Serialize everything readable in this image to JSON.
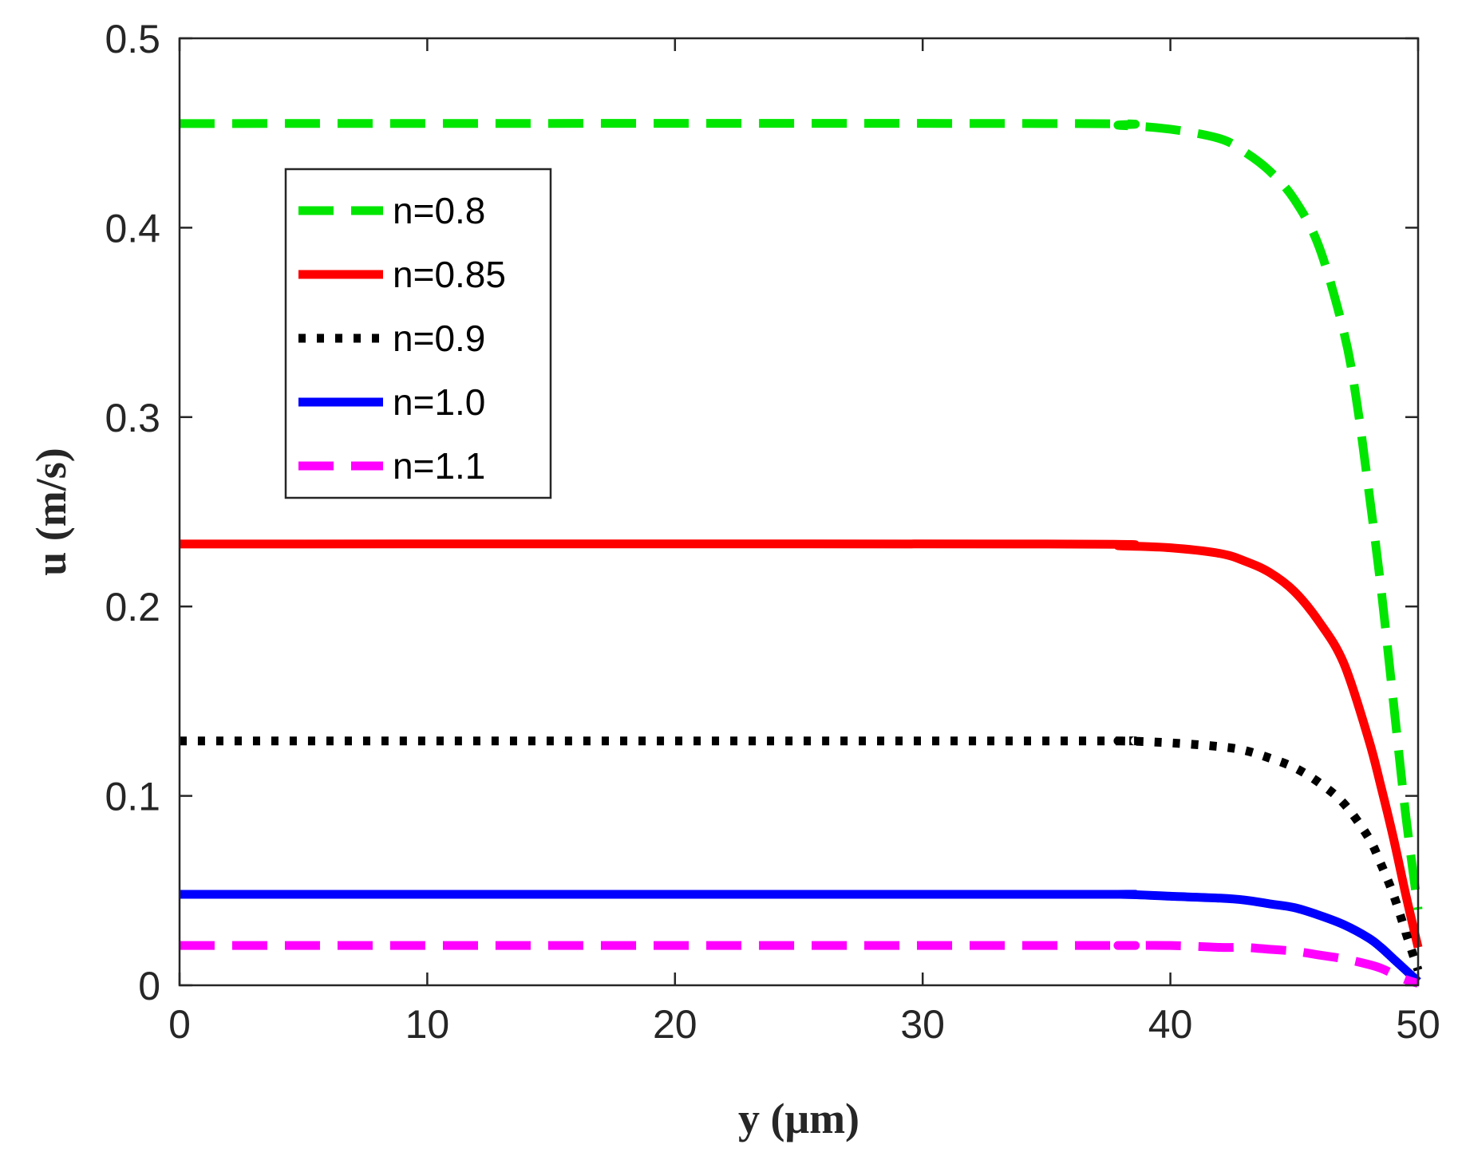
{
  "chart_data": {
    "type": "line",
    "title": "",
    "xlabel": "y (μm)",
    "ylabel": "u (m/s)",
    "xlim": [
      0,
      50
    ],
    "ylim": [
      0,
      0.5
    ],
    "xticks": [
      0,
      10,
      20,
      30,
      40,
      50
    ],
    "yticks": [
      0,
      0.1,
      0.2,
      0.3,
      0.4,
      0.5
    ],
    "xtick_labels": [
      "0",
      "10",
      "20",
      "30",
      "40",
      "50"
    ],
    "ytick_labels": [
      "0",
      "0.1",
      "0.2",
      "0.3",
      "0.4",
      "0.5"
    ],
    "grid": false,
    "legend_position": "top-left",
    "series": [
      {
        "name": "n=0.8",
        "color": "#00e600",
        "style": "dashed",
        "x": [
          0,
          35,
          38,
          40,
          42,
          43,
          44,
          45,
          46,
          47,
          47.5,
          48,
          48.5,
          49,
          49.5,
          50
        ],
        "y": [
          0.455,
          0.455,
          0.454,
          0.452,
          0.447,
          0.44,
          0.43,
          0.415,
          0.39,
          0.345,
          0.31,
          0.262,
          0.21,
          0.15,
          0.09,
          0.04
        ]
      },
      {
        "name": "n=0.85",
        "color": "#ff0000",
        "style": "solid",
        "x": [
          0,
          35,
          38,
          40,
          42,
          43,
          44,
          45,
          46,
          47,
          48,
          48.5,
          49,
          49.5,
          50
        ],
        "y": [
          0.233,
          0.233,
          0.232,
          0.231,
          0.228,
          0.224,
          0.218,
          0.208,
          0.192,
          0.17,
          0.13,
          0.105,
          0.078,
          0.048,
          0.02
        ]
      },
      {
        "name": "n=0.9",
        "color": "#000000",
        "style": "dotted",
        "x": [
          0,
          35,
          38,
          40,
          42,
          43,
          44,
          45,
          46,
          47,
          48,
          48.5,
          49,
          49.5,
          50
        ],
        "y": [
          0.129,
          0.129,
          0.129,
          0.128,
          0.126,
          0.124,
          0.12,
          0.115,
          0.107,
          0.096,
          0.078,
          0.064,
          0.048,
          0.028,
          0.008
        ]
      },
      {
        "name": "n=1.0",
        "color": "#0000ff",
        "style": "solid",
        "x": [
          0,
          35,
          38,
          40,
          42,
          43,
          44,
          45,
          46,
          47,
          48,
          48.5,
          49,
          49.5,
          50
        ],
        "y": [
          0.048,
          0.048,
          0.048,
          0.047,
          0.046,
          0.045,
          0.043,
          0.041,
          0.037,
          0.032,
          0.025,
          0.02,
          0.014,
          0.008,
          0.002
        ]
      },
      {
        "name": "n=1.1",
        "color": "#ff00ff",
        "style": "dashed",
        "x": [
          0,
          35,
          38,
          40,
          42,
          43,
          44,
          45,
          46,
          47,
          48,
          48.5,
          49,
          49.5,
          50
        ],
        "y": [
          0.021,
          0.021,
          0.021,
          0.021,
          0.02,
          0.02,
          0.019,
          0.018,
          0.016,
          0.014,
          0.011,
          0.009,
          0.006,
          0.003,
          0.001
        ]
      }
    ]
  }
}
